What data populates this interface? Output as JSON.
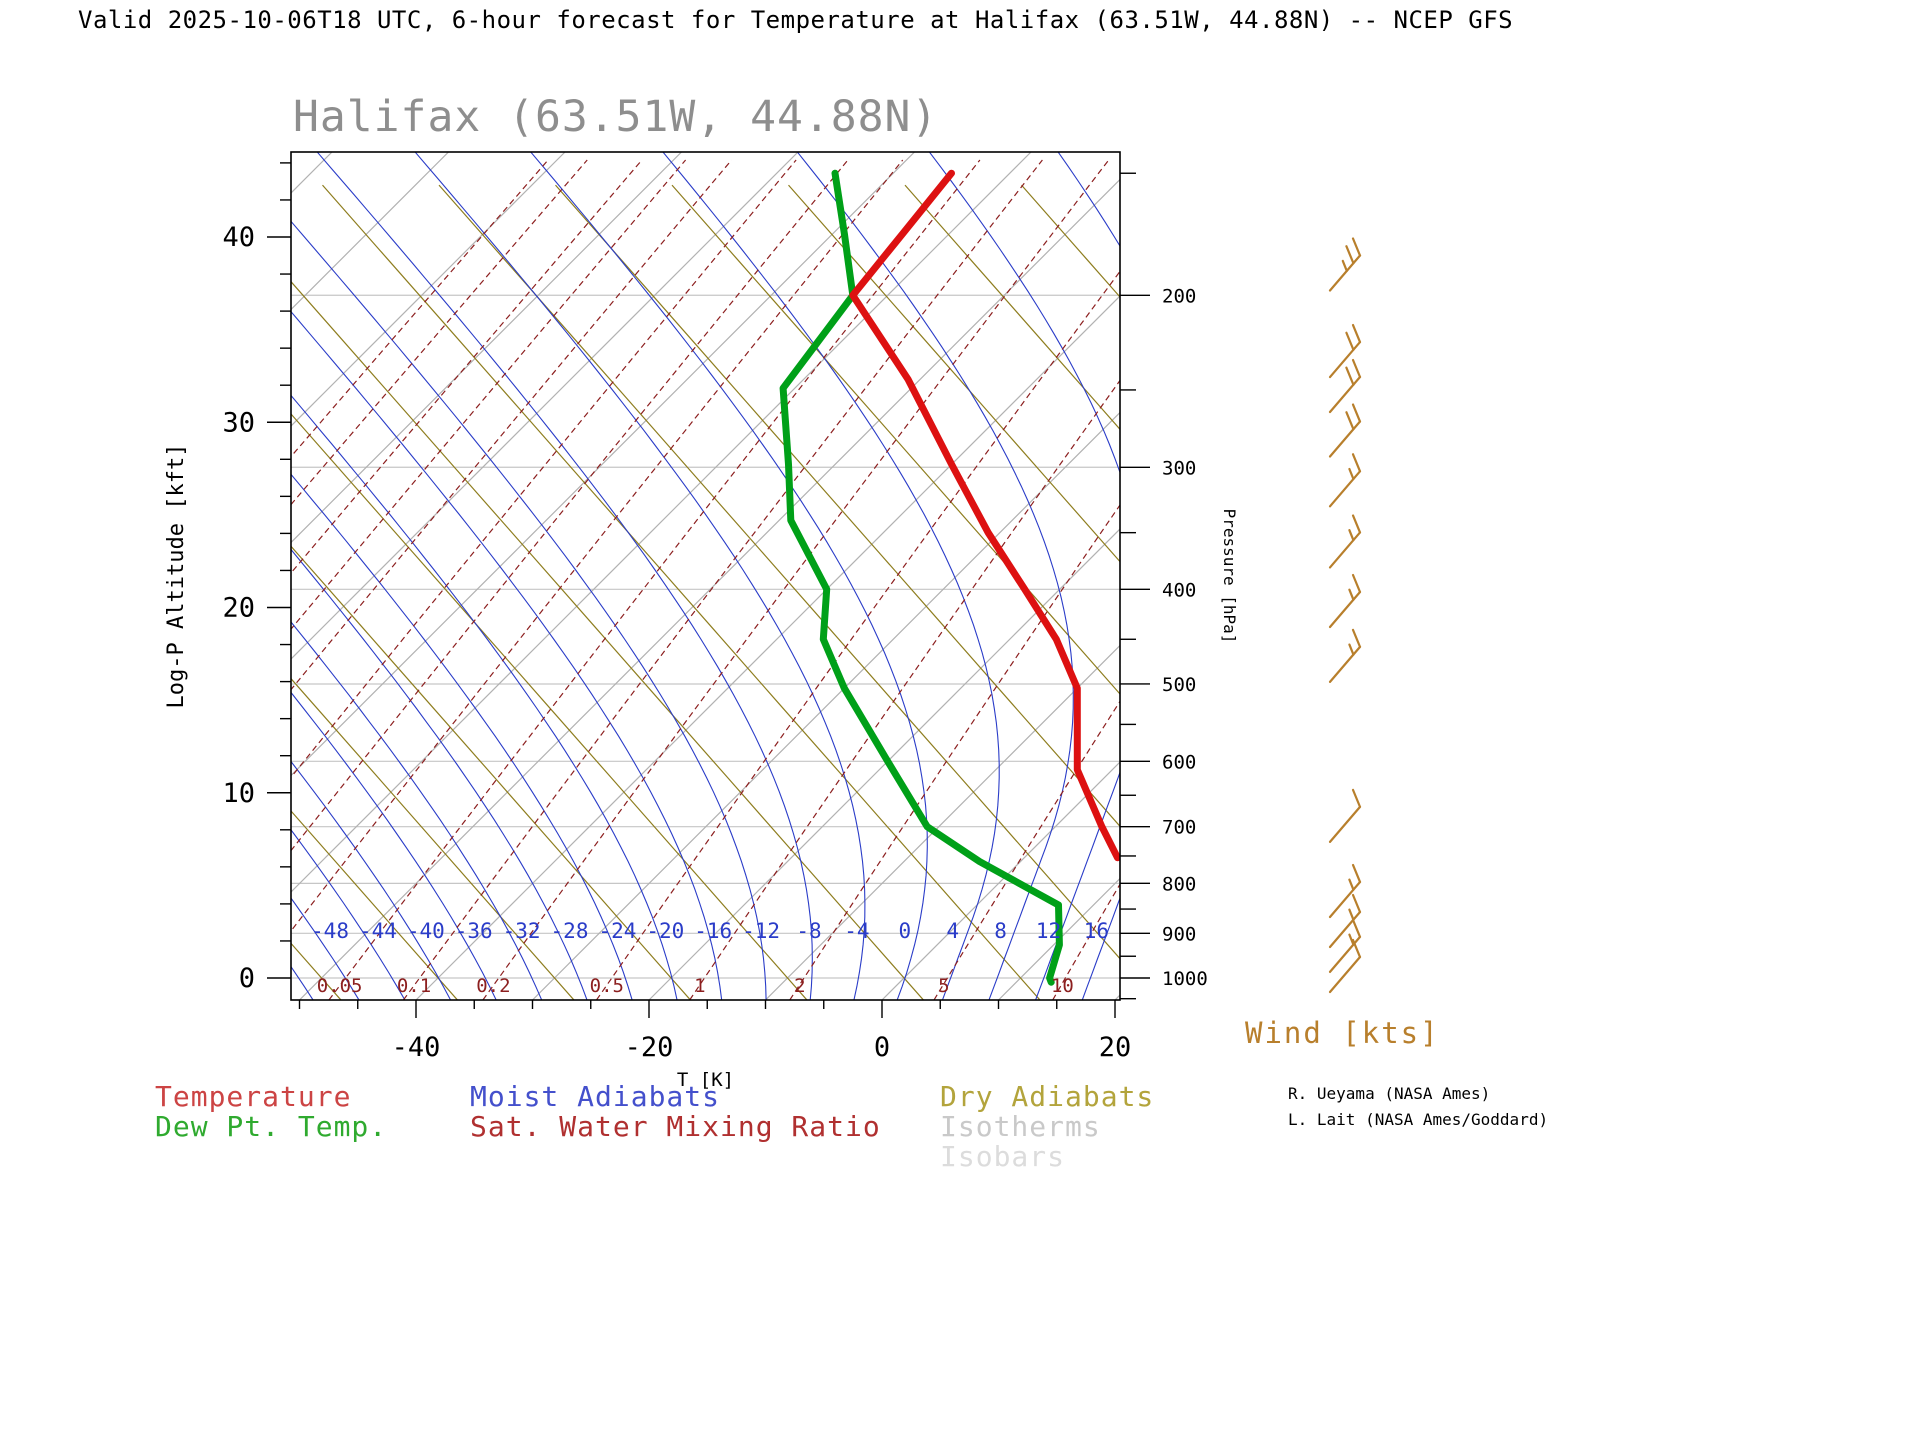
{
  "header": {
    "title": "Valid 2025-10-06T18 UTC, 6-hour forecast for Temperature at Halifax (63.51W, 44.88N) -- NCEP GFS"
  },
  "station": {
    "title": "Halifax (63.51W, 44.88N)"
  },
  "axes": {
    "left": {
      "label": "Log-P Altitude [kft]",
      "ticks": [
        0,
        10,
        20,
        30,
        40
      ]
    },
    "bottom": {
      "label": "T [K]",
      "ticks": [
        -40,
        -20,
        0,
        20
      ]
    },
    "right": {
      "label": "Pressure [hPa]",
      "ticks": [
        200,
        300,
        400,
        500,
        600,
        700,
        800,
        900,
        1000
      ]
    }
  },
  "in_plot_labels": {
    "moist_adiabat_values": [
      -48,
      -44,
      -40,
      -36,
      -32,
      -28,
      -24,
      -20,
      -16,
      -12,
      -8,
      -4,
      0,
      4,
      8,
      12,
      16
    ],
    "mixing_ratio_values": [
      0.05,
      0.1,
      0.2,
      0.5,
      1,
      2,
      5,
      10
    ]
  },
  "legend": {
    "temperature": "Temperature",
    "dew_point": "Dew Pt. Temp.",
    "moist_adiabats": "Moist Adiabats",
    "sat_water_mixing_ratio": "Sat. Water Mixing Ratio",
    "dry_adiabats": "Dry Adiabats",
    "isotherms": "Isotherms",
    "isobars": "Isobars"
  },
  "wind_label": "Wind [kts]",
  "credits": {
    "line1": "R. Ueyama (NASA Ames)",
    "line2": "L. Lait (NASA Ames/Goddard)"
  },
  "colors": {
    "temperature": "#dd1111",
    "dew_point": "#00a018",
    "moist_adiabat": "#2a3cc8",
    "dry_adiabat": "#8e7d1e",
    "isotherm": "#b2b2b2",
    "isobar": "#c6c6c6",
    "mixing_ratio": "#8c1f1f",
    "wind": "#b87f2c",
    "station_title": "#8e8e8e",
    "moist_label": "#2a3cc8",
    "mix_label": "#8c1f1f",
    "legend_temperature": "#cc4444",
    "legend_dew": "#2faa2f",
    "legend_moist": "#4450cc",
    "legend_mix": "#b03030",
    "legend_dry": "#b3a43c",
    "legend_isotherms": "#c9c9c9",
    "legend_isobars": "#dcdcdc"
  },
  "chart_data": {
    "type": "line",
    "diagram": "skew-T log-P sounding",
    "title": "Halifax (63.51W, 44.88N)",
    "xlabel": "T [K]",
    "ylabel_left": "Log-P Altitude [kft]",
    "ylabel_right": "Pressure [hPa]",
    "x_ticks_degC": [
      -40,
      -20,
      0,
      20
    ],
    "altitude_ticks_kft": [
      0,
      10,
      20,
      30,
      40
    ],
    "pressure_ticks_hpa": [
      200,
      300,
      400,
      500,
      600,
      700,
      800,
      900,
      1000
    ],
    "series": [
      {
        "name": "Temperature",
        "color": "#dd1111",
        "points_p_T": [
          [
            753,
            8
          ],
          [
            700,
            4
          ],
          [
            612,
            -3
          ],
          [
            505,
            -10
          ],
          [
            450,
            -16
          ],
          [
            400,
            -23
          ],
          [
            350,
            -31
          ],
          [
            298,
            -40
          ],
          [
            244,
            -51
          ],
          [
            200,
            -63
          ],
          [
            173,
            -64
          ],
          [
            150,
            -65
          ]
        ]
      },
      {
        "name": "Dew Pt. Temp.",
        "color": "#00a018",
        "points_p_T": [
          [
            1010,
            13
          ],
          [
            1000,
            12.5
          ],
          [
            925,
            10.5
          ],
          [
            842,
            7
          ],
          [
            760,
            -3.5
          ],
          [
            700,
            -11
          ],
          [
            600,
            -20
          ],
          [
            505,
            -30
          ],
          [
            450,
            -36
          ],
          [
            400,
            -40
          ],
          [
            340,
            -49
          ],
          [
            298,
            -54
          ],
          [
            249,
            -61
          ],
          [
            200,
            -63
          ],
          [
            173,
            -69
          ],
          [
            150,
            -75
          ]
        ]
      }
    ],
    "winds_p_kts": [
      [
        190,
        25
      ],
      [
        233,
        20
      ],
      [
        253,
        20
      ],
      [
        281,
        20
      ],
      [
        316,
        15
      ],
      [
        365,
        15
      ],
      [
        420,
        15
      ],
      [
        478,
        15
      ],
      [
        697,
        10
      ],
      [
        832,
        15
      ],
      [
        893,
        15
      ],
      [
        947,
        15
      ],
      [
        993,
        10
      ]
    ],
    "background": {
      "isobars_hpa": [
        200,
        300,
        400,
        500,
        600,
        700,
        800,
        900,
        1000
      ],
      "isotherms_degC_step": 10,
      "dry_adiabats_degC_step": 10,
      "moist_adiabats_degC_step": 4,
      "mixing_ratio_lines_gkg": [
        0.0001,
        0.0002,
        0.0005,
        0.001,
        0.002,
        0.005,
        0.01,
        0.02,
        0.05,
        0.1,
        0.2,
        0.5,
        1,
        2,
        5,
        10,
        20,
        50
      ]
    }
  }
}
